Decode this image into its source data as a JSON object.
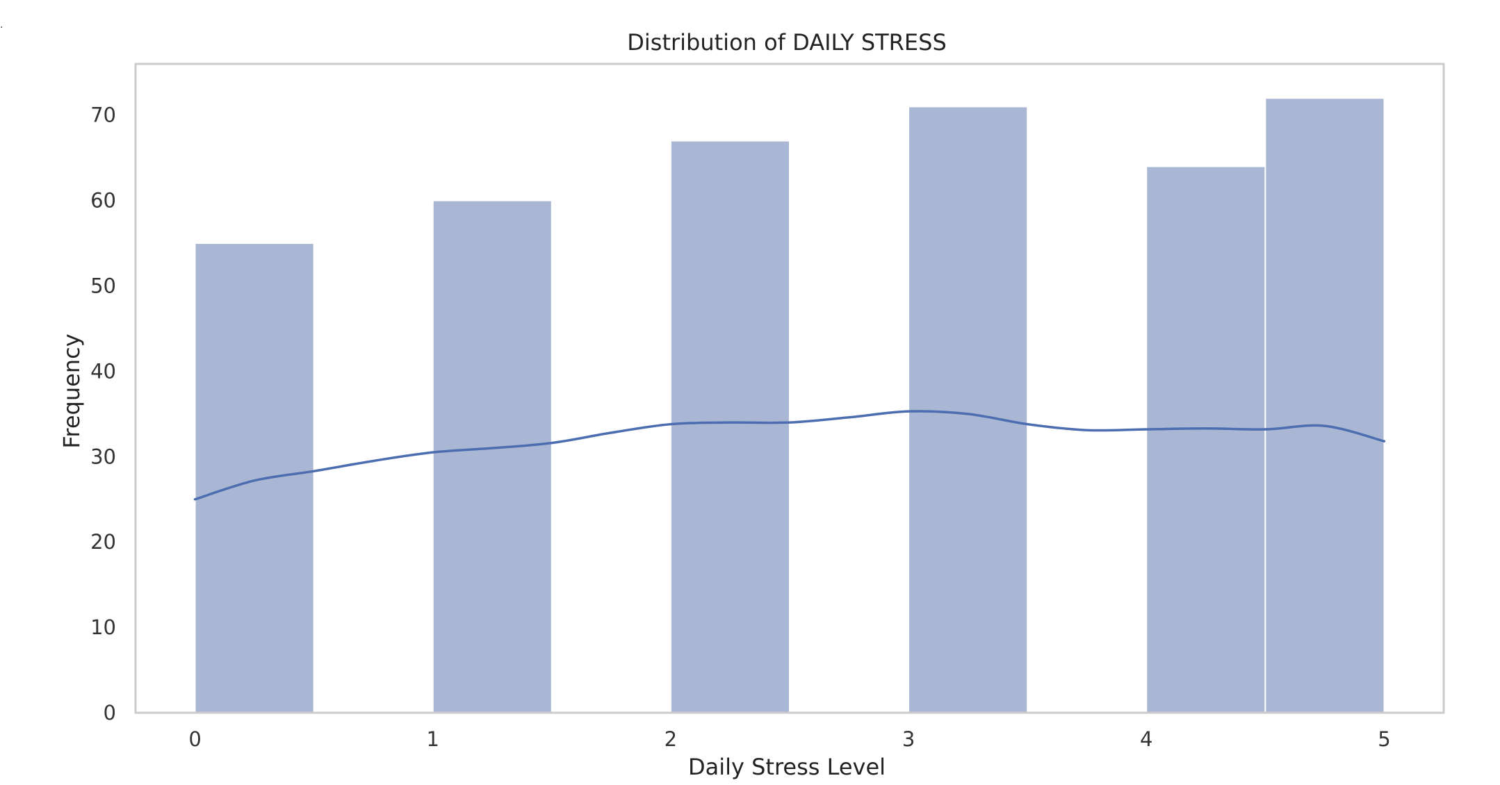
{
  "stray_mark": ".",
  "chart_data": {
    "type": "bar",
    "title": "Distribution of DAILY STRESS",
    "xlabel": "Daily Stress Level",
    "ylabel": "Frequency",
    "xlim": [
      -0.25,
      5.25
    ],
    "ylim": [
      0,
      76
    ],
    "xticks": [
      0,
      1,
      2,
      3,
      4,
      5
    ],
    "yticks": [
      0,
      10,
      20,
      30,
      40,
      50,
      60,
      70
    ],
    "grid": false,
    "bins": [
      {
        "x0": 0.0,
        "x1": 0.5,
        "count": 55
      },
      {
        "x0": 1.0,
        "x1": 1.5,
        "count": 60
      },
      {
        "x0": 2.0,
        "x1": 2.5,
        "count": 67
      },
      {
        "x0": 3.0,
        "x1": 3.5,
        "count": 71
      },
      {
        "x0": 4.0,
        "x1": 4.5,
        "count": 64
      },
      {
        "x0": 4.5,
        "x1": 5.0,
        "count": 72
      }
    ],
    "kde": {
      "x": [
        0,
        0.25,
        0.5,
        0.75,
        1.0,
        1.25,
        1.5,
        1.75,
        2.0,
        2.25,
        2.5,
        2.75,
        3.0,
        3.25,
        3.5,
        3.75,
        4.0,
        4.25,
        4.5,
        4.75,
        5.0
      ],
      "y": [
        25.0,
        27.2,
        28.3,
        29.5,
        30.5,
        31.0,
        31.6,
        32.8,
        33.8,
        34.0,
        34.0,
        34.6,
        35.3,
        35.0,
        33.8,
        33.1,
        33.2,
        33.3,
        33.2,
        33.6,
        31.8
      ]
    },
    "colors": {
      "bar": "#a9b7d5",
      "bar_edge": "#ffffff",
      "kde": "#4c6db0",
      "frame": "#cccccc"
    }
  }
}
